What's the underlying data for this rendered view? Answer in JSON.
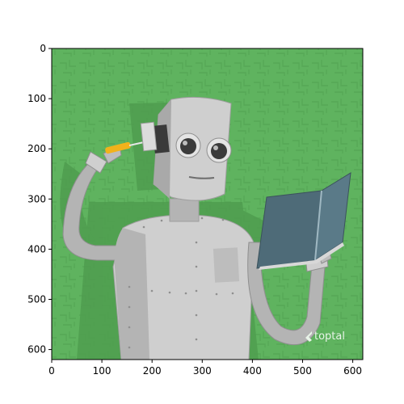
{
  "watermark": {
    "text": "toptal",
    "icon": "toptal-logo-icon"
  },
  "axes": {
    "x_ticks": [
      "0",
      "100",
      "200",
      "300",
      "400",
      "500",
      "600"
    ],
    "y_ticks": [
      "0",
      "100",
      "200",
      "300",
      "400",
      "500",
      "600"
    ],
    "x_values": [
      0,
      100,
      200,
      300,
      400,
      500,
      600
    ],
    "y_values": [
      0,
      100,
      200,
      300,
      400,
      500,
      600
    ],
    "range": [
      0,
      620
    ]
  },
  "colors": {
    "background": "#5fb35f",
    "robot_light": "#cfcfcf",
    "robot_mid": "#b4b4b4",
    "robot_dark": "#8f8f8f",
    "book": "#4e6b78",
    "screwdriver": "#f2b21b"
  }
}
